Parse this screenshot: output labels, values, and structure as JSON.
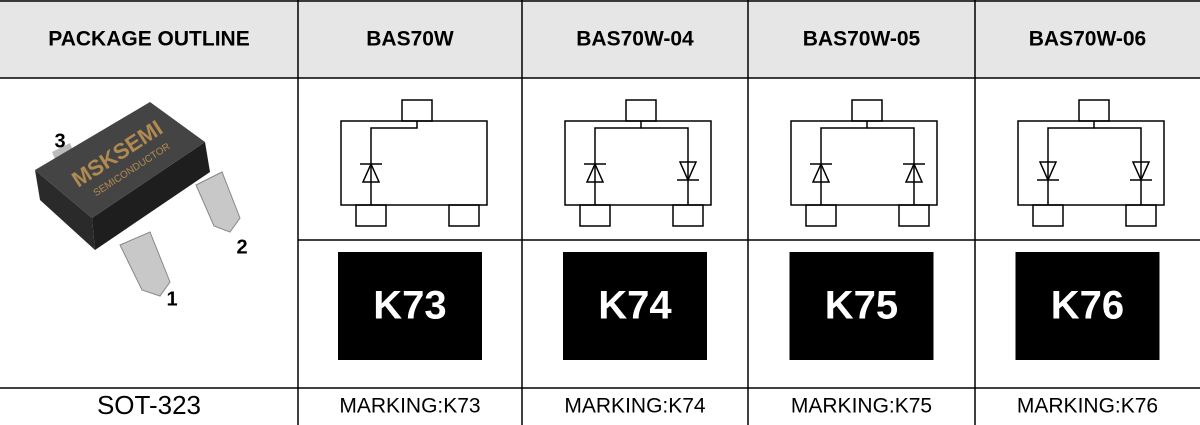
{
  "header": [
    "PACKAGE OUTLINE",
    "BAS70W",
    "BAS70W-04",
    "BAS70W-05",
    "BAS70W-06"
  ],
  "package": {
    "brand": "MSKSEMI",
    "subtitle": "SEMICONDUCTOR",
    "pins": [
      "3",
      "2",
      "1"
    ]
  },
  "markings": [
    "K73",
    "K74",
    "K75",
    "K76"
  ],
  "footer": [
    "SOT-323",
    "MARKING:K73",
    "MARKING:K74",
    "MARKING:K75",
    "MARKING:K76"
  ]
}
